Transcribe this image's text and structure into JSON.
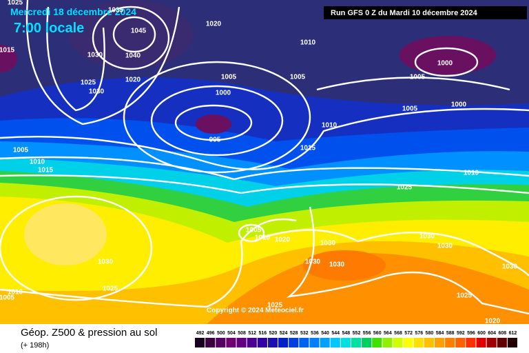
{
  "header": {
    "date": "Mercredi 18 décembre 2024",
    "time": "7:00 locale",
    "run": "Run GFS 0 Z du Mardi 10 décembre 2024"
  },
  "copyright": "Copyright © 2024 Meteociel.fr",
  "isobar_labels": [
    1025,
    1035,
    1020,
    1045,
    1015,
    1030,
    1040,
    1010,
    1000,
    1025,
    1020,
    1030,
    1005,
    1005,
    1005,
    1000,
    1005,
    1000,
    995,
    1010,
    1015,
    1005,
    1010,
    1015,
    1010,
    1025,
    1005,
    1010,
    1020,
    1030,
    1030,
    1030,
    1030,
    1030,
    1030,
    1030,
    1025,
    1010,
    1005,
    1025,
    1025,
    1020
  ],
  "legend": {
    "title": "Géop. Z500 & pression au sol",
    "lead_time": "(+ 198h)",
    "scale": [
      492,
      496,
      500,
      504,
      508,
      512,
      516,
      520,
      524,
      528,
      532,
      536,
      540,
      544,
      548,
      552,
      556,
      560,
      564,
      568,
      572,
      576,
      580,
      584,
      588,
      592,
      596,
      600,
      604,
      608,
      612
    ]
  }
}
